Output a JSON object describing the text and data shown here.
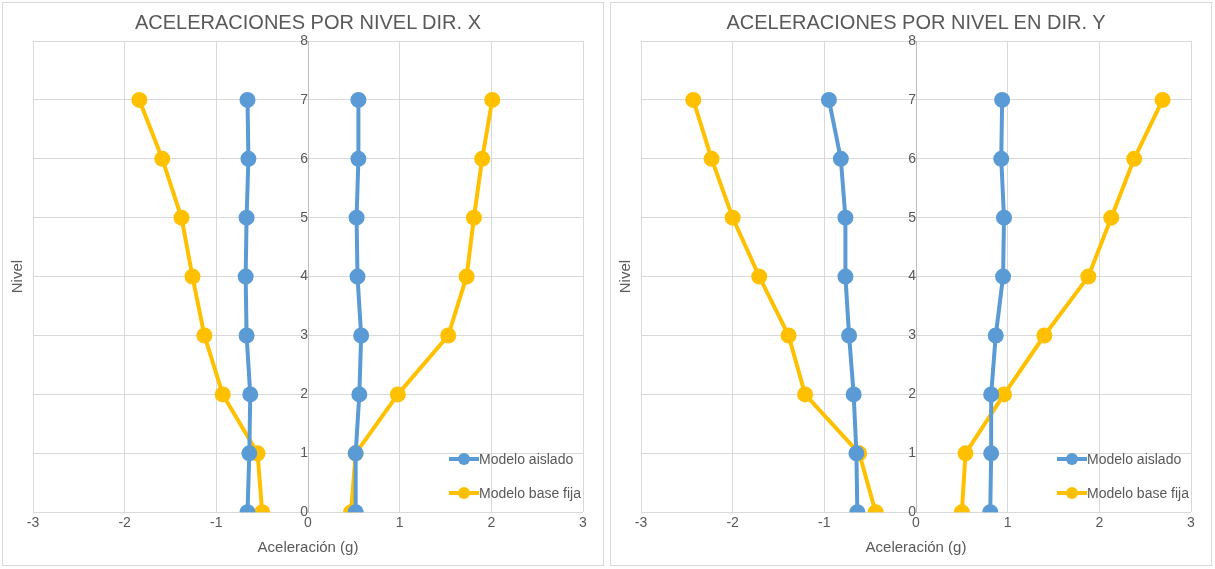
{
  "chart_data": [
    {
      "type": "line",
      "title": "ACELERACIONES POR NIVEL DIR. X",
      "xlabel": "Aceleración (g)",
      "ylabel": "Nivel",
      "xlim": [
        -3,
        3
      ],
      "xticks": [
        -3,
        -2,
        -1,
        0,
        1,
        2,
        3
      ],
      "ylim": [
        0,
        8
      ],
      "yticks": [
        0,
        1,
        2,
        3,
        4,
        5,
        6,
        7,
        8
      ],
      "grid": true,
      "legend": "bottom right",
      "marker": "circle",
      "series": [
        {
          "color": "#5b9bd5",
          "x": [
            -0.66,
            -0.64,
            -0.63,
            -0.67,
            -0.68,
            -0.67,
            -0.65,
            -0.66
          ],
          "values": [
            0,
            1,
            2,
            3,
            4,
            5,
            6,
            7
          ]
        },
        {
          "name": "Modelo aislado",
          "color": "#5b9bd5",
          "x": [
            0.52,
            0.52,
            0.56,
            0.58,
            0.54,
            0.53,
            0.55,
            0.55
          ],
          "values": [
            0,
            1,
            2,
            3,
            4,
            5,
            6,
            7
          ]
        },
        {
          "color": "#ffc000",
          "x": [
            -0.5,
            -0.55,
            -0.93,
            -1.13,
            -1.26,
            -1.38,
            -1.59,
            -1.84
          ],
          "values": [
            0,
            1,
            2,
            3,
            4,
            5,
            6,
            7
          ]
        },
        {
          "name": "Modelo base fija",
          "color": "#ffc000",
          "x": [
            0.47,
            0.52,
            0.98,
            1.53,
            1.73,
            1.81,
            1.9,
            2.01
          ],
          "values": [
            0,
            1,
            2,
            3,
            4,
            5,
            6,
            7
          ]
        }
      ]
    },
    {
      "type": "line",
      "title": "ACELERACIONES POR NIVEL EN DIR. Y",
      "xlabel": "Aceleración (g)",
      "ylabel": "Nivel",
      "xlim": [
        -3,
        3
      ],
      "xticks": [
        -3,
        -2,
        -1,
        0,
        1,
        2,
        3
      ],
      "ylim": [
        0,
        8
      ],
      "yticks": [
        0,
        1,
        2,
        3,
        4,
        5,
        6,
        7,
        8
      ],
      "grid": true,
      "legend": "bottom right",
      "marker": "circle",
      "series": [
        {
          "color": "#5b9bd5",
          "x": [
            -0.64,
            -0.65,
            -0.68,
            -0.73,
            -0.77,
            -0.77,
            -0.82,
            -0.95
          ],
          "values": [
            0,
            1,
            2,
            3,
            4,
            5,
            6,
            7
          ]
        },
        {
          "name": "Modelo aislado",
          "color": "#5b9bd5",
          "x": [
            0.81,
            0.82,
            0.82,
            0.87,
            0.95,
            0.96,
            0.93,
            0.94
          ],
          "values": [
            0,
            1,
            2,
            3,
            4,
            5,
            6,
            7
          ]
        },
        {
          "color": "#ffc000",
          "x": [
            -0.44,
            -0.62,
            -1.21,
            -1.39,
            -1.71,
            -2.0,
            -2.23,
            -2.43
          ],
          "values": [
            0,
            1,
            2,
            3,
            4,
            5,
            6,
            7
          ]
        },
        {
          "name": "Modelo base fija",
          "color": "#ffc000",
          "x": [
            0.5,
            0.54,
            0.96,
            1.4,
            1.88,
            2.13,
            2.38,
            2.69
          ],
          "values": [
            0,
            1,
            2,
            3,
            4,
            5,
            6,
            7
          ]
        }
      ]
    }
  ]
}
